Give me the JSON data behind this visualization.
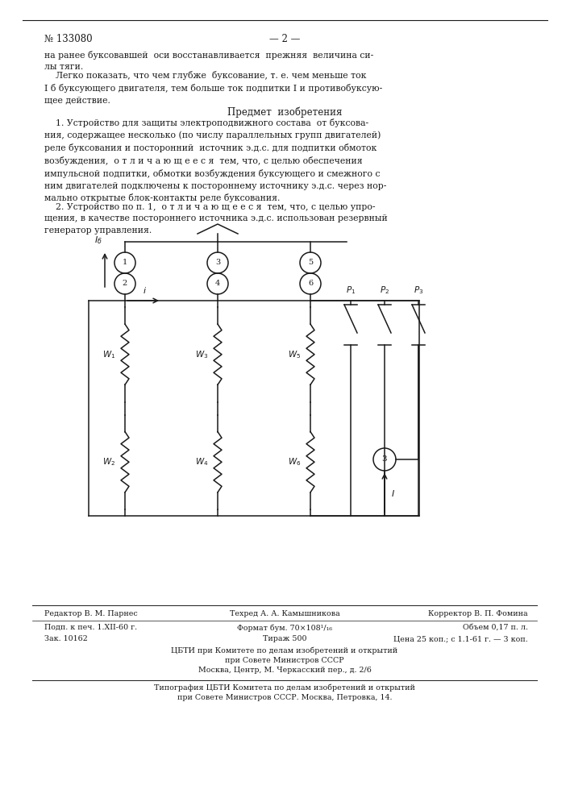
{
  "page_number": "№ 133080",
  "page_num_center": "— 2 —",
  "bg_color": "#ffffff",
  "text_color": "#1a1a1a",
  "para1": "на ранее буксовавшей  оси восстанавливается  прежняя  величина си-\nлы тяги.",
  "para2": "    Легко показать, что чем глубже  буксование, т. е. чем меньше ток\nІ б буксующего двигателя, тем больше ток подпитки І и противобуксую-\nщее действие.",
  "section_title": "Предмет  изобретения",
  "patent1": "    1. Устройство для защиты электроподвижного состава  от буксова-\nния, содержащее несколько (по числу параллельных групп двигателей)\nреле буксования и посторонний  источник э.д.с. для подпитки обмоток\nвозбуждения,  о т л и ч а ю щ е е с я  тем, что, с целью обеспечения\nимпульсной подпитки, обмотки возбуждения буксующего и смежного с\nним двигателей подключены к постороннему источнику э.д.с. через нор-\nмально открытые блок-контакты реле буксования.",
  "patent2": "    2. Устройство по п. 1,  о т л и ч а ю щ е е с я  тем, что, с целью упро-\nщения, в качестве постороннего источника э.д.с. использован резервный\nгенератор управления.",
  "footer_editor": "Редактор В. М. Парнес",
  "footer_tech": "Техред А. А. Камышникова",
  "footer_corrector": "Корректор В. П. Фомина",
  "footer_line2a": "Подп. к печ. 1.XII-60 г.",
  "footer_line2b": "Формат бум. 70×108¹/₁₆",
  "footer_line2c": "Объем 0,17 п. л.",
  "footer_line3a": "Зак. 10162",
  "footer_line3b": "Тираж 500",
  "footer_line3c": "Цена 25 коп.; с 1.1-61 г. — 3 коп.",
  "footer_line4": "ЦБТИ при Комитете по делам изобретений и открытий\nпри Совете Министров СССР\nМосква, Центр, М. Черкасский пер., д. 2/6",
  "footer_line5": "Типография ЦБТИ Комитета по делам изобретений и открытий\nпри Совете Министров СССР. Москва, Петровка, 14."
}
